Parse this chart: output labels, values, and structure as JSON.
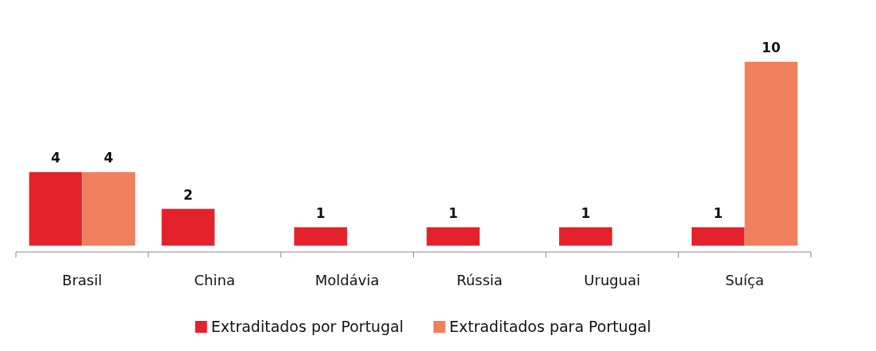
{
  "chart_data": {
    "type": "bar",
    "categories": [
      "Brasil",
      "China",
      "Moldávia",
      "Rússia",
      "Uruguai",
      "Suíça"
    ],
    "series": [
      {
        "name": "Extraditados por Portugal",
        "color": "#e3222b",
        "values": [
          4,
          2,
          1,
          1,
          1,
          1
        ]
      },
      {
        "name": "Extraditados para Portugal",
        "color": "#f07f5e",
        "values": [
          4,
          null,
          null,
          null,
          null,
          10
        ]
      }
    ],
    "data_labels": true,
    "legend": "bottom"
  }
}
